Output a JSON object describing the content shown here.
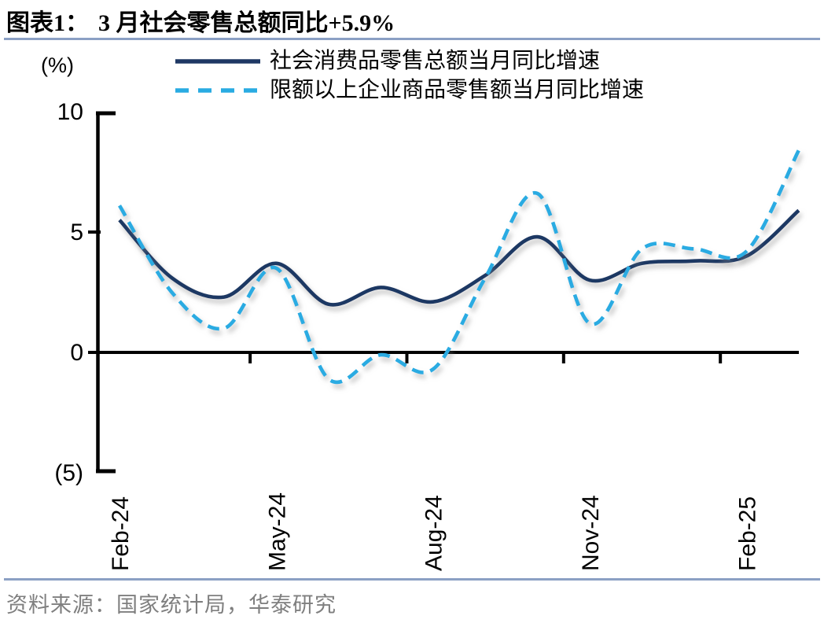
{
  "header": {
    "tag": "图表1：",
    "title": "3 月社会零售总额同比+5.9%"
  },
  "footer": {
    "source": "资料来源：国家统计局，华泰研究"
  },
  "theme": {
    "divider_color": "#8BA0C4",
    "title_color": "#000000",
    "source_text_color": "#7F7F7F",
    "axis_color": "#000000"
  },
  "chart_data": {
    "type": "line",
    "unit_label": "(%)",
    "smooth": true,
    "grid": false,
    "legend_position": "top",
    "ylim": [
      -5,
      10
    ],
    "x": [
      "Feb-24",
      "Mar-24",
      "Apr-24",
      "May-24",
      "Jun-24",
      "Jul-24",
      "Aug-24",
      "Sep-24",
      "Oct-24",
      "Nov-24",
      "Dec-24",
      "Jan-25",
      "Feb-25",
      "Mar-25"
    ],
    "x_tick_labels": [
      {
        "index": 0,
        "label": "Feb-24"
      },
      {
        "index": 3,
        "label": "May-24"
      },
      {
        "index": 6,
        "label": "Aug-24"
      },
      {
        "index": 9,
        "label": "Nov-24"
      },
      {
        "index": 12,
        "label": "Feb-25"
      }
    ],
    "x_minor_ticks_at_index": [
      2.5,
      5.5,
      8.5,
      11.5
    ],
    "y_ticks": [
      {
        "value": 10,
        "label": "10"
      },
      {
        "value": 5,
        "label": "5"
      },
      {
        "value": 0,
        "label": "0"
      },
      {
        "value": -5,
        "label": "(5)"
      }
    ],
    "series": [
      {
        "name": "社会消费品零售总额当月同比增速",
        "style": "solid",
        "color": "#1F3864",
        "values": [
          5.5,
          3.1,
          2.3,
          3.7,
          2.0,
          2.7,
          2.1,
          3.2,
          4.8,
          3.0,
          3.7,
          3.8,
          4.0,
          5.9
        ]
      },
      {
        "name": "限额以上企业商品零售额当月同比增速",
        "style": "dashed",
        "color": "#29ABE2",
        "values": [
          6.1,
          2.5,
          1.0,
          3.5,
          -1.1,
          -0.1,
          -0.7,
          3.1,
          6.6,
          1.2,
          4.3,
          4.3,
          4.2,
          8.4
        ]
      }
    ]
  }
}
